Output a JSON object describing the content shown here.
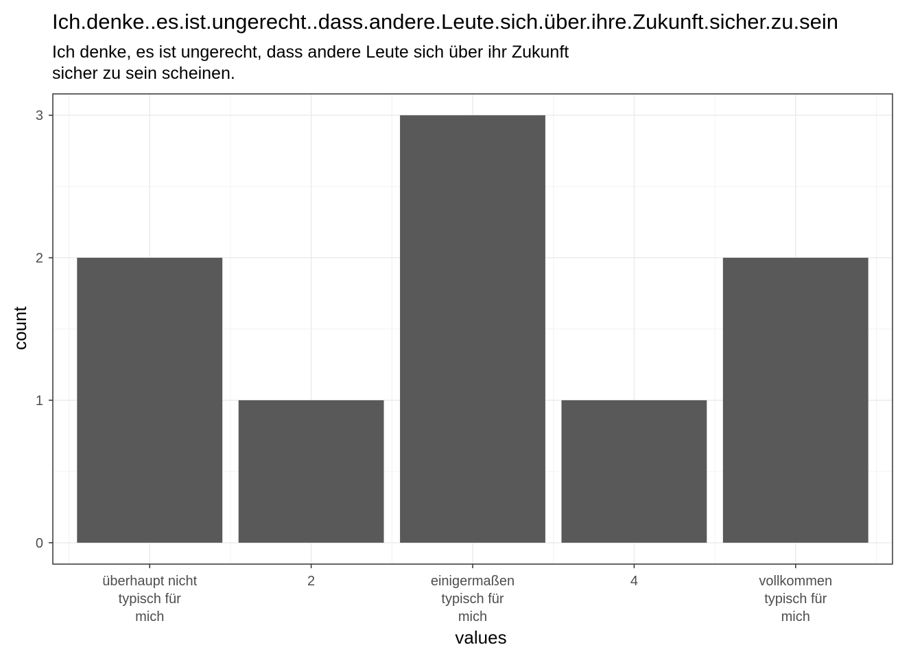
{
  "chart_data": {
    "type": "bar",
    "title": "Ich.denke..es.ist.ungerecht..dass.andere.Leute.sich.über.ihre.Zukunft.sicher.zu.sein",
    "subtitle_lines": [
      "Ich denke, es ist ungerecht, dass andere Leute sich über ihr Zukunft",
      "sicher zu sein scheinen."
    ],
    "xlabel": "values",
    "ylabel": "count",
    "categories": [
      [
        "überhaupt nicht",
        "typisch für",
        "mich"
      ],
      [
        "2"
      ],
      [
        "einigermaßen",
        "typisch für",
        "mich"
      ],
      [
        "4"
      ],
      [
        "vollkommen",
        "typisch für",
        "mich"
      ]
    ],
    "values": [
      2,
      1,
      3,
      1,
      2
    ],
    "yticks": [
      0,
      1,
      2,
      3
    ],
    "ylim": [
      -0.15,
      3.15
    ],
    "bar_color": "#595959",
    "grid": true
  }
}
